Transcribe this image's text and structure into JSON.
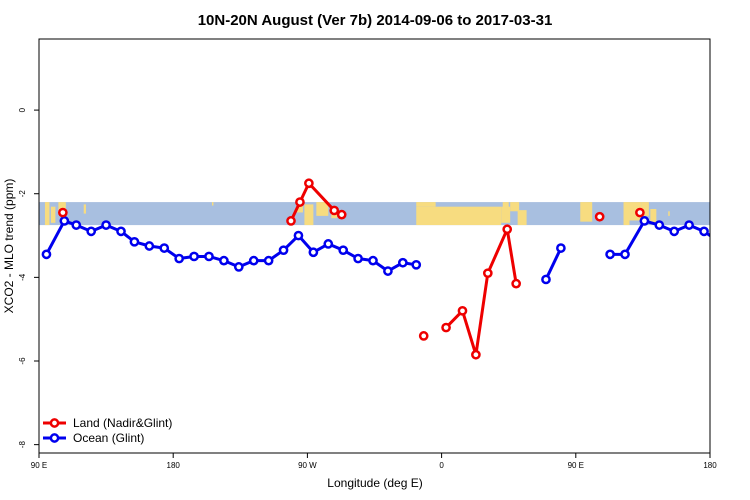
{
  "chart_data": {
    "type": "line",
    "title": "10N-20N August (Ver 7b)   2014-09-06 to 2017-03-31",
    "xlabel": "Longitude (deg E)",
    "ylabel": "XCO2 - MLO trend (ppm)",
    "xlim": [
      90,
      540
    ],
    "ylim": [
      -8.2,
      1.7
    ],
    "x_ticks": [
      {
        "value": 90,
        "label": "90 E"
      },
      {
        "value": 180,
        "label": "180"
      },
      {
        "value": 270,
        "label": "90 W"
      },
      {
        "value": 360,
        "label": "0"
      },
      {
        "value": 450,
        "label": "90 E"
      },
      {
        "value": 540,
        "label": "180"
      }
    ],
    "y_ticks": [
      {
        "value": 0,
        "label": "0"
      },
      {
        "value": -2,
        "label": "-2"
      },
      {
        "value": -4,
        "label": "-4"
      },
      {
        "value": -6,
        "label": "-6"
      },
      {
        "value": -8,
        "label": "-8"
      }
    ],
    "map_strip": {
      "lat_range": [
        10,
        20
      ],
      "y_range": [
        -2.75,
        -2.2
      ],
      "ocean_color": "#a8bfe0",
      "land_color": "#f7dc80"
    },
    "legend": {
      "position": "bottom-left"
    },
    "series": [
      {
        "name": "Ocean (Glint)",
        "color": "#0000ee",
        "segments": [
          [
            [
              95,
              -3.45
            ],
            [
              107,
              -2.65
            ],
            [
              115,
              -2.75
            ],
            [
              125,
              -2.9
            ],
            [
              135,
              -2.75
            ],
            [
              145,
              -2.9
            ],
            [
              154,
              -3.15
            ],
            [
              164,
              -3.25
            ],
            [
              174,
              -3.3
            ],
            [
              184,
              -3.55
            ],
            [
              194,
              -3.5
            ],
            [
              204,
              -3.5
            ],
            [
              214,
              -3.6
            ],
            [
              224,
              -3.75
            ],
            [
              234,
              -3.6
            ],
            [
              244,
              -3.6
            ],
            [
              254,
              -3.35
            ],
            [
              264,
              -3.0
            ],
            [
              274,
              -3.4
            ],
            [
              284,
              -3.2
            ],
            [
              294,
              -3.35
            ],
            [
              304,
              -3.55
            ],
            [
              314,
              -3.6
            ],
            [
              324,
              -3.85
            ],
            [
              334,
              -3.65
            ],
            [
              343,
              -3.7
            ]
          ],
          [
            [
              430,
              -4.05
            ],
            [
              440,
              -3.3
            ]
          ],
          [
            [
              473,
              -3.45
            ],
            [
              483,
              -3.45
            ],
            [
              496,
              -2.65
            ],
            [
              506,
              -2.75
            ],
            [
              516,
              -2.9
            ],
            [
              526,
              -2.75
            ],
            [
              536,
              -2.9
            ],
            [
              546,
              -3.15
            ],
            [
              556,
              -3.25
            ],
            [
              566,
              -3.3
            ]
          ]
        ]
      },
      {
        "name": "Land (Nadir&Glint)",
        "color": "#ee0000",
        "segments": [
          [
            [
              106,
              -2.45
            ]
          ],
          [
            [
              259,
              -2.65
            ],
            [
              265,
              -2.2
            ],
            [
              271,
              -1.75
            ],
            [
              288,
              -2.4
            ],
            [
              293,
              -2.5
            ]
          ],
          [
            [
              348,
              -5.4
            ]
          ],
          [
            [
              363,
              -5.2
            ],
            [
              374,
              -4.8
            ],
            [
              383,
              -5.85
            ],
            [
              391,
              -3.9
            ],
            [
              404,
              -2.85
            ],
            [
              410,
              -4.15
            ]
          ],
          [
            [
              466,
              -2.55
            ]
          ],
          [
            [
              493,
              -2.45
            ]
          ]
        ]
      }
    ]
  }
}
